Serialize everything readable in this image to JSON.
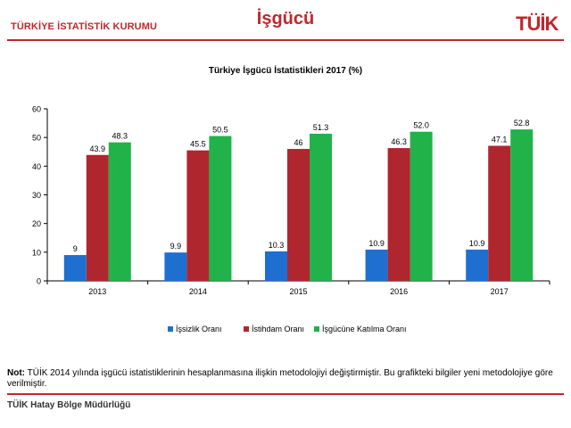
{
  "header": {
    "org_name": "TÜRKİYE İSTATİSTİK KURUMU",
    "title": "İşgücü",
    "logo_text": "TÜİK"
  },
  "note": {
    "prefix": "Not:",
    "text": "TÜİK 2014 yılında işgücü istatistiklerinin hesaplanmasına ilişkin metodolojiyi değiştirmiştir. Bu grafikteki bilgiler yeni metodolojiye göre verilmiştir."
  },
  "footer": {
    "text": "TÜİK Hatay Bölge Müdürlüğü"
  },
  "colors": {
    "brand": "#c0272d",
    "series": [
      "#1f6fd1",
      "#b0262e",
      "#21b24a"
    ]
  },
  "chart_data": {
    "type": "bar",
    "title": "Türkiye İşgücü İstatistikleri  2017 (%)",
    "categories": [
      "2013",
      "2014",
      "2015",
      "2016",
      "2017"
    ],
    "series": [
      {
        "name": "İşsizlik Oranı",
        "values": [
          9,
          9.9,
          10.3,
          10.9,
          10.9
        ],
        "labels": [
          "9",
          "9.9",
          "10.3",
          "10.9",
          "10.9"
        ]
      },
      {
        "name": "İstihdam Oranı",
        "values": [
          43.9,
          45.5,
          46,
          46.3,
          47.1
        ],
        "labels": [
          "43.9",
          "45.5",
          "46",
          "46.3",
          "47.1"
        ]
      },
      {
        "name": "İşgücüne Katılma Oranı",
        "values": [
          48.3,
          50.5,
          51.3,
          52.0,
          52.8
        ],
        "labels": [
          "48.3",
          "50.5",
          "51.3",
          "52.0",
          "52.8"
        ]
      }
    ],
    "ylim": [
      0,
      60
    ],
    "yticks": [
      0,
      10,
      20,
      30,
      40,
      50,
      60
    ],
    "grid": false,
    "legend_position": "bottom"
  }
}
